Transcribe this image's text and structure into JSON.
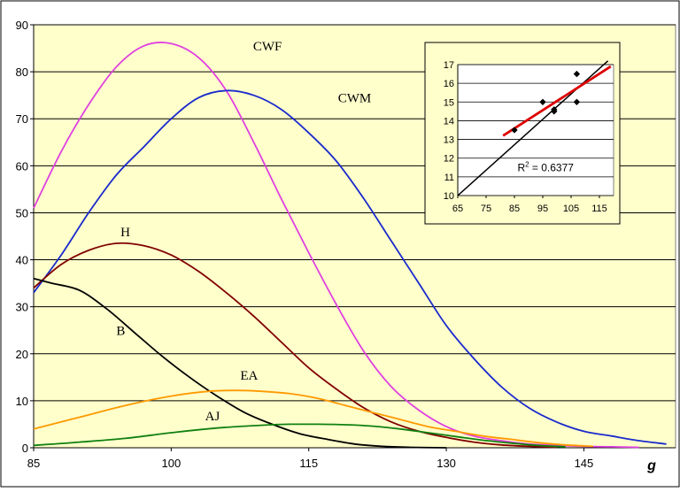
{
  "chart_data": [
    {
      "type": "line",
      "xlabel": "g",
      "xlim": [
        85,
        155
      ],
      "ylim": [
        0,
        90
      ],
      "xticks": [
        85,
        100,
        115,
        130,
        145
      ],
      "yticks": [
        0,
        10,
        20,
        30,
        40,
        50,
        60,
        70,
        80,
        90
      ],
      "grid": "horizontal",
      "colors": {
        "plot_background": "#ffffcc",
        "gridline": "#000000"
      },
      "series": [
        {
          "name": "CWF",
          "color": "#e040e0",
          "x": [
            85,
            88,
            91,
            94,
            97,
            100,
            103,
            106,
            109,
            112,
            115,
            118,
            121,
            124,
            127,
            130,
            133,
            136,
            139,
            142,
            145,
            148,
            151
          ],
          "y": [
            51,
            63,
            73,
            81,
            85.5,
            86,
            83,
            76,
            65,
            53,
            41.5,
            30.5,
            20.5,
            13,
            8,
            4.5,
            2.5,
            1.5,
            0.8,
            0.5,
            0.3,
            0.2,
            0.1
          ]
        },
        {
          "name": "CWM",
          "color": "#1a2acc",
          "x": [
            85,
            88,
            91,
            94,
            97,
            100,
            103,
            106,
            109,
            112,
            115,
            118,
            121,
            124,
            127,
            130,
            133,
            136,
            139,
            142,
            145,
            148,
            151,
            154
          ],
          "y": [
            33,
            41,
            50,
            58,
            64,
            70,
            74.5,
            76,
            75,
            72,
            67,
            61,
            53,
            44,
            35,
            26,
            19,
            13,
            8.5,
            5.5,
            3.5,
            2.5,
            1.5,
            0.8
          ]
        },
        {
          "name": "H",
          "color": "#800000",
          "x": [
            85,
            88,
            91,
            94,
            97,
            100,
            103,
            106,
            109,
            112,
            115,
            118,
            121,
            124,
            127,
            130,
            133,
            136,
            139,
            142
          ],
          "y": [
            34,
            39,
            42,
            43.5,
            43,
            41,
            37.5,
            33,
            28,
            22.5,
            17,
            12.5,
            8.5,
            5.5,
            3.5,
            2.2,
            1.2,
            0.6,
            0.3,
            0.1
          ]
        },
        {
          "name": "B",
          "color": "#000000",
          "x": [
            85,
            87,
            90,
            93,
            96,
            99,
            102,
            105,
            108,
            111,
            114,
            117,
            120,
            123,
            126,
            130
          ],
          "y": [
            36,
            35,
            33.5,
            29.5,
            24.5,
            19.5,
            15,
            11,
            7.5,
            5,
            3,
            1.8,
            0.8,
            0.3,
            0.1,
            0
          ]
        },
        {
          "name": "EA",
          "color": "#ff9900",
          "x": [
            85,
            90,
            95,
            100,
            104,
            107,
            110,
            113,
            116,
            119,
            122,
            125,
            128,
            131,
            134,
            137,
            140,
            143,
            146
          ],
          "y": [
            4,
            6.5,
            9,
            11,
            12,
            12.2,
            12,
            11.5,
            10.5,
            9,
            7.5,
            6,
            4.5,
            3.5,
            2.5,
            1.8,
            1.1,
            0.6,
            0.3
          ]
        },
        {
          "name": "AJ",
          "color": "#108010",
          "x": [
            85,
            90,
            95,
            100,
            105,
            110,
            113,
            116,
            119,
            122,
            125,
            128,
            131,
            134,
            137,
            140,
            143
          ],
          "y": [
            0.5,
            1.2,
            2,
            3.2,
            4.2,
            4.8,
            5,
            5,
            4.9,
            4.6,
            4,
            3.2,
            2.4,
            1.6,
            1,
            0.5,
            0.2
          ]
        }
      ]
    },
    {
      "type": "scatter",
      "xlim": [
        65,
        120
      ],
      "ylim": [
        10,
        17
      ],
      "xticks": [
        65,
        75,
        85,
        95,
        105,
        115
      ],
      "yticks": [
        10,
        11,
        12,
        13,
        14,
        15,
        16,
        17
      ],
      "grid": "horizontal",
      "annotation": {
        "prefix": "R",
        "superscript": "2",
        "suffix": " = 0.6377"
      },
      "points": {
        "x": [
          85,
          95,
          99,
          99,
          107,
          107
        ],
        "y": [
          13.5,
          15,
          14.5,
          14.6,
          16.5,
          15
        ]
      },
      "regression_line": {
        "color": "#dd0000",
        "x": [
          81,
          119
        ],
        "y": [
          13.2,
          16.9
        ]
      },
      "identity_line": {
        "color": "#000000",
        "x": [
          65,
          118
        ],
        "y": [
          10,
          17.2
        ]
      }
    }
  ]
}
